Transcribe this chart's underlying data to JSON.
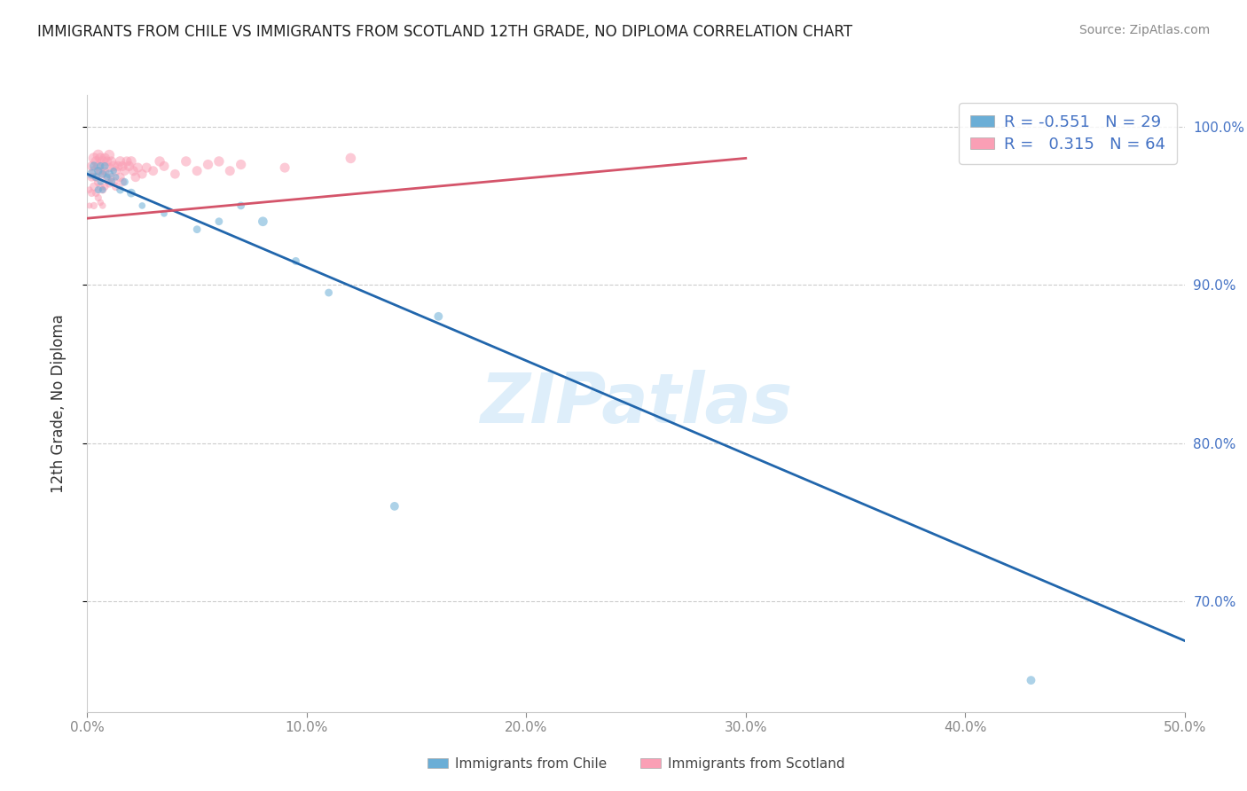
{
  "title": "IMMIGRANTS FROM CHILE VS IMMIGRANTS FROM SCOTLAND 12TH GRADE, NO DIPLOMA CORRELATION CHART",
  "source": "Source: ZipAtlas.com",
  "ylabel": "12th Grade, No Diploma",
  "xmin": 0.0,
  "xmax": 0.5,
  "ymin": 0.63,
  "ymax": 1.02,
  "xtick_labels": [
    "0.0%",
    "10.0%",
    "20.0%",
    "30.0%",
    "40.0%",
    "50.0%"
  ],
  "xtick_vals": [
    0.0,
    0.1,
    0.2,
    0.3,
    0.4,
    0.5
  ],
  "ytick_labels": [
    "100.0%",
    "90.0%",
    "80.0%",
    "70.0%"
  ],
  "ytick_vals": [
    1.0,
    0.9,
    0.8,
    0.7
  ],
  "legend_chile": "Immigrants from Chile",
  "legend_scotland": "Immigrants from Scotland",
  "R_chile": "-0.551",
  "N_chile": "29",
  "R_scotland": "0.315",
  "N_scotland": "64",
  "color_chile": "#6baed6",
  "color_scotland": "#fa9fb5",
  "line_color_chile": "#2166ac",
  "line_color_scotland": "#d4546a",
  "watermark": "ZIPatlas",
  "chile_x": [
    0.002,
    0.003,
    0.004,
    0.005,
    0.005,
    0.006,
    0.006,
    0.007,
    0.007,
    0.008,
    0.009,
    0.01,
    0.011,
    0.012,
    0.013,
    0.015,
    0.017,
    0.02,
    0.025,
    0.035,
    0.05,
    0.06,
    0.07,
    0.08,
    0.095,
    0.11,
    0.14,
    0.16,
    0.43
  ],
  "chile_y": [
    0.97,
    0.975,
    0.968,
    0.972,
    0.96,
    0.975,
    0.965,
    0.97,
    0.96,
    0.975,
    0.968,
    0.97,
    0.965,
    0.972,
    0.968,
    0.96,
    0.965,
    0.958,
    0.95,
    0.945,
    0.935,
    0.94,
    0.95,
    0.94,
    0.915,
    0.895,
    0.76,
    0.88,
    0.65
  ],
  "chile_sizes": [
    60,
    50,
    40,
    45,
    35,
    40,
    30,
    40,
    30,
    40,
    30,
    50,
    40,
    30,
    30,
    40,
    40,
    50,
    30,
    30,
    40,
    40,
    40,
    60,
    40,
    40,
    50,
    50,
    50
  ],
  "scotland_x": [
    0.001,
    0.001,
    0.002,
    0.002,
    0.002,
    0.003,
    0.003,
    0.003,
    0.003,
    0.004,
    0.004,
    0.004,
    0.005,
    0.005,
    0.005,
    0.005,
    0.006,
    0.006,
    0.006,
    0.006,
    0.007,
    0.007,
    0.007,
    0.007,
    0.008,
    0.008,
    0.008,
    0.009,
    0.009,
    0.01,
    0.01,
    0.01,
    0.011,
    0.011,
    0.012,
    0.012,
    0.013,
    0.013,
    0.014,
    0.015,
    0.015,
    0.016,
    0.016,
    0.017,
    0.018,
    0.019,
    0.02,
    0.021,
    0.022,
    0.023,
    0.025,
    0.027,
    0.03,
    0.033,
    0.035,
    0.04,
    0.045,
    0.05,
    0.055,
    0.06,
    0.065,
    0.07,
    0.09,
    0.12
  ],
  "scotland_y": [
    0.96,
    0.95,
    0.975,
    0.968,
    0.958,
    0.98,
    0.972,
    0.962,
    0.95,
    0.978,
    0.968,
    0.958,
    0.982,
    0.975,
    0.965,
    0.955,
    0.98,
    0.972,
    0.962,
    0.952,
    0.978,
    0.97,
    0.96,
    0.95,
    0.98,
    0.972,
    0.962,
    0.978,
    0.968,
    0.982,
    0.974,
    0.964,
    0.978,
    0.968,
    0.975,
    0.965,
    0.972,
    0.962,
    0.975,
    0.978,
    0.968,
    0.975,
    0.965,
    0.972,
    0.978,
    0.975,
    0.978,
    0.972,
    0.968,
    0.974,
    0.97,
    0.974,
    0.972,
    0.978,
    0.975,
    0.97,
    0.978,
    0.972,
    0.976,
    0.978,
    0.972,
    0.976,
    0.974,
    0.98
  ],
  "scotland_sizes": [
    30,
    25,
    60,
    50,
    40,
    80,
    65,
    50,
    35,
    70,
    55,
    40,
    80,
    65,
    50,
    35,
    75,
    60,
    45,
    30,
    70,
    55,
    40,
    30,
    70,
    55,
    40,
    65,
    50,
    75,
    60,
    45,
    65,
    50,
    70,
    55,
    60,
    45,
    65,
    70,
    55,
    65,
    50,
    60,
    65,
    68,
    70,
    65,
    60,
    65,
    60,
    65,
    62,
    68,
    64,
    60,
    68,
    63,
    66,
    68,
    63,
    66,
    64,
    70
  ]
}
